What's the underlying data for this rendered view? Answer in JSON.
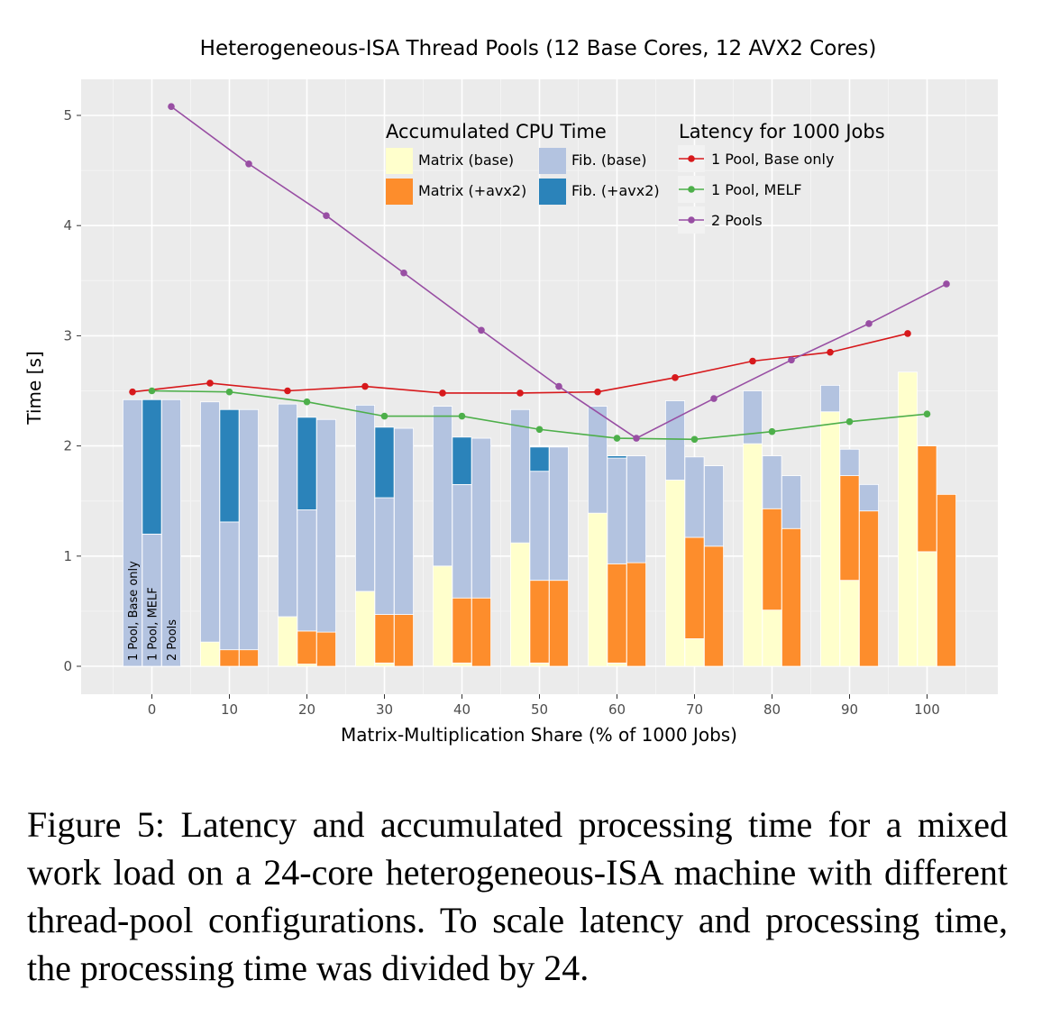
{
  "chart_data": {
    "type": "bar",
    "title": "Heterogeneous-ISA Thread Pools (12 Base Cores, 12 AVX2 Cores)",
    "xlabel": "Matrix-Multiplication Share (% of 1000 Jobs)",
    "ylabel": "Time [s]",
    "x": [
      0,
      10,
      20,
      30,
      40,
      50,
      60,
      70,
      80,
      90,
      100
    ],
    "x_ticks": [
      "0",
      "10",
      "20",
      "30",
      "40",
      "50",
      "60",
      "70",
      "80",
      "90",
      "100"
    ],
    "y_ticks": [
      "0",
      "1",
      "2",
      "3",
      "4",
      "5"
    ],
    "ylim": [
      -0.25,
      5.3
    ],
    "xlim": [
      -9,
      109
    ],
    "grid": true,
    "bar_group_labels": [
      "1 Pool, Base only",
      "1 Pool, MELF",
      "2 Pools"
    ],
    "bar_stacks": [
      {
        "group": "1 Pool, Base only",
        "matrix_base": [
          0,
          0.22,
          0.45,
          0.68,
          0.91,
          1.12,
          1.39,
          1.69,
          2.02,
          2.31,
          2.67
        ],
        "matrix_avx2": [
          0,
          0,
          0,
          0,
          0,
          0,
          0,
          0,
          0,
          0,
          0
        ],
        "fib_base": [
          2.42,
          2.18,
          1.93,
          1.69,
          1.45,
          1.21,
          0.97,
          0.72,
          0.48,
          0.24,
          0
        ],
        "fib_avx2": [
          0,
          0,
          0,
          0,
          0,
          0,
          0,
          0,
          0,
          0,
          0
        ]
      },
      {
        "group": "1 Pool, MELF",
        "matrix_base": [
          0,
          0,
          0.02,
          0.03,
          0.03,
          0.03,
          0.03,
          0.25,
          0.51,
          0.78,
          1.04
        ],
        "matrix_avx2": [
          0,
          0.15,
          0.3,
          0.44,
          0.59,
          0.75,
          0.9,
          0.92,
          0.92,
          0.95,
          0.96
        ],
        "fib_base": [
          1.2,
          1.16,
          1.1,
          1.06,
          1.03,
          0.99,
          0.96,
          0.73,
          0.48,
          0.24,
          0
        ],
        "fib_avx2": [
          1.22,
          1.02,
          0.84,
          0.64,
          0.43,
          0.22,
          0.02,
          0,
          0,
          0,
          0
        ]
      },
      {
        "group": "2 Pools",
        "matrix_base": [
          0,
          0,
          0,
          0,
          0,
          0,
          0,
          0,
          0,
          0,
          0
        ],
        "matrix_avx2": [
          0,
          0.15,
          0.31,
          0.47,
          0.62,
          0.78,
          0.94,
          1.09,
          1.25,
          1.41,
          1.56
        ],
        "fib_base": [
          2.42,
          2.18,
          1.93,
          1.69,
          1.45,
          1.21,
          0.97,
          0.73,
          0.48,
          0.24,
          0
        ],
        "fib_avx2": [
          0,
          0,
          0,
          0,
          0,
          0,
          0,
          0,
          0,
          0,
          0
        ]
      }
    ],
    "bar_legend": {
      "title": "Accumulated CPU Time",
      "entries": [
        {
          "label": "Matrix (base)",
          "color": "#ffffcc"
        },
        {
          "label": "Fib. (base)",
          "color": "#b3c3e0"
        },
        {
          "label": "Matrix (+avx2)",
          "color": "#fd8d2c"
        },
        {
          "label": "Fib. (+avx2)",
          "color": "#2b83ba"
        }
      ]
    },
    "line_legend": {
      "title": "Latency for 1000 Jobs",
      "entries": [
        {
          "label": "1 Pool, Base only",
          "color": "#d7191c"
        },
        {
          "label": "1 Pool, MELF",
          "color": "#4daf4a"
        },
        {
          "label": "2 Pools",
          "color": "#984ea3"
        }
      ]
    },
    "series": [
      {
        "name": "1 Pool, Base only",
        "color": "#d7191c",
        "x": [
          -2.5,
          7.5,
          17.5,
          27.5,
          37.5,
          47.5,
          57.5,
          67.5,
          77.5,
          87.5,
          97.5
        ],
        "values": [
          2.49,
          2.57,
          2.5,
          2.54,
          2.48,
          2.48,
          2.49,
          2.62,
          2.77,
          2.85,
          3.02
        ]
      },
      {
        "name": "1 Pool, MELF",
        "color": "#4daf4a",
        "x": [
          0,
          10,
          20,
          30,
          40,
          50,
          60,
          70,
          80,
          90,
          100
        ],
        "values": [
          2.5,
          2.49,
          2.4,
          2.27,
          2.27,
          2.15,
          2.07,
          2.06,
          2.13,
          2.22,
          2.29
        ]
      },
      {
        "name": "2 Pools",
        "color": "#984ea3",
        "x": [
          2.5,
          12.5,
          22.5,
          32.5,
          42.5,
          52.5,
          62.5,
          72.5,
          82.5,
          92.5,
          102.5
        ],
        "values": [
          5.08,
          4.56,
          4.09,
          3.57,
          3.05,
          2.54,
          2.07,
          2.43,
          2.78,
          3.11,
          3.47
        ]
      }
    ]
  },
  "caption": "Figure 5:  Latency and accumulated processing time for a mixed work load on a 24-core heterogeneous-ISA machine with different thread-pool configurations.  To scale latency and processing time, the processing time was divided by 24."
}
